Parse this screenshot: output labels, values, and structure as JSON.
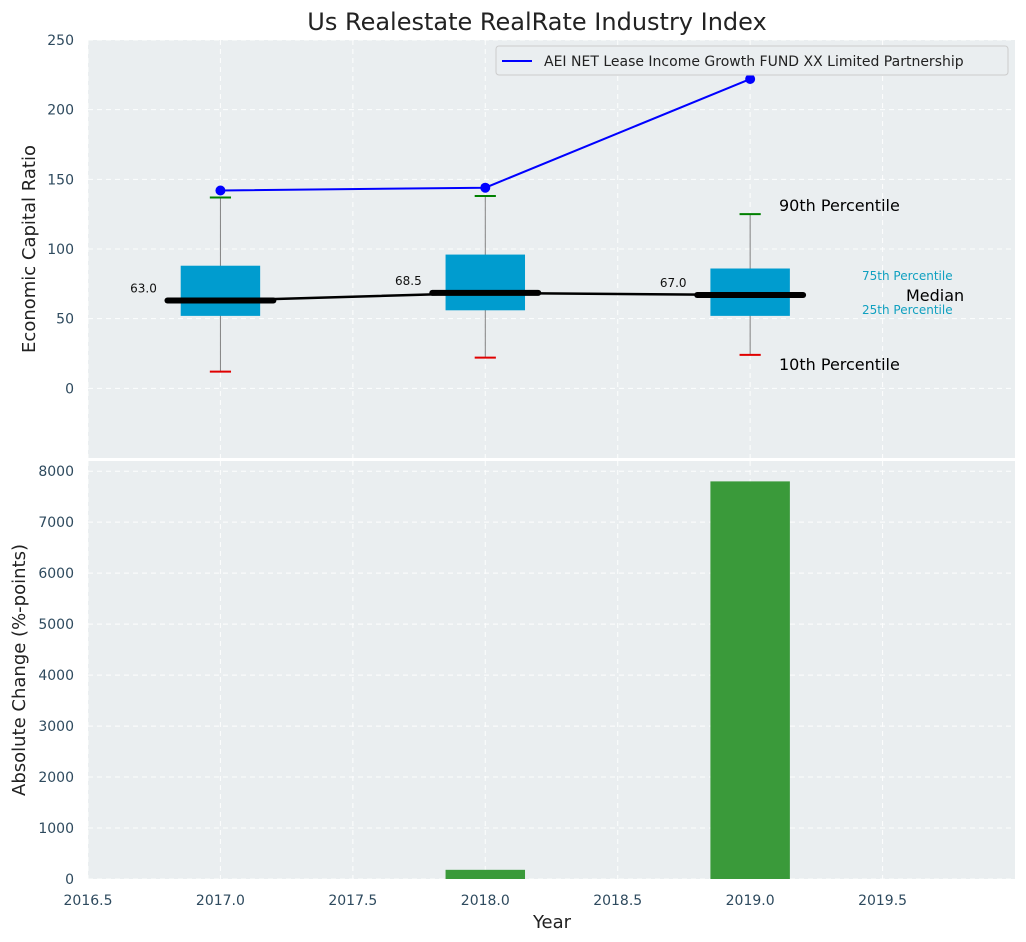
{
  "chart_data": [
    {
      "type": "boxplot_line",
      "title": "Us Realestate RealRate Industry Index",
      "xlabel": "",
      "ylabel": "Economic Capital Ratio",
      "xlim": [
        2016.5,
        2020.0
      ],
      "ylim": [
        -50,
        250
      ],
      "yticks": [
        0,
        50,
        100,
        150,
        200,
        250
      ],
      "grid": true,
      "boxes": [
        {
          "x": 2017.0,
          "p10": 12,
          "p25": 52,
          "median": 63.0,
          "p75": 88,
          "p90": 137,
          "median_label": "63.0"
        },
        {
          "x": 2018.0,
          "p10": 22,
          "p25": 56,
          "median": 68.5,
          "p75": 96,
          "p90": 138,
          "median_label": "68.5"
        },
        {
          "x": 2019.0,
          "p10": 24,
          "p25": 52,
          "median": 67.0,
          "p75": 86,
          "p90": 125,
          "median_label": "67.0"
        }
      ],
      "series": [
        {
          "name": "AEI NET Lease Income Growth FUND XX Limited Partnership",
          "color": "#0000ff",
          "x": [
            2017.0,
            2018.0,
            2019.0
          ],
          "values": [
            142,
            144,
            222
          ]
        }
      ],
      "legend_position": "top-right",
      "annotations": {
        "p90": "90th Percentile",
        "p75": "75th Percentile",
        "median": "Median",
        "p25": "25th Percentile",
        "p10": "10th Percentile"
      }
    },
    {
      "type": "bar",
      "title": "",
      "xlabel": "Year",
      "ylabel": "Absolute Change (%-points)",
      "xlim": [
        2016.5,
        2020.0
      ],
      "ylim": [
        0,
        8200
      ],
      "yticks": [
        0,
        1000,
        2000,
        3000,
        4000,
        5000,
        6000,
        7000,
        8000
      ],
      "xticks": [
        2016.5,
        2017.0,
        2017.5,
        2018.0,
        2018.5,
        2019.0,
        2019.5
      ],
      "xtick_labels": [
        "2016.5",
        "2017.0",
        "2017.5",
        "2018.0",
        "2018.5",
        "2019.0",
        "2019.5"
      ],
      "grid": true,
      "x": [
        2018.0,
        2019.0
      ],
      "values": [
        180,
        7800
      ]
    }
  ],
  "colors": {
    "panel_bg": "#eaeef0",
    "box": "#009ccf",
    "whisker": "#808080",
    "p90_cap": "#008000",
    "p10_cap": "#e00000",
    "median": "#000000",
    "series_line": "#0000ff",
    "bar": "#3a9a3a",
    "annotation_cyan": "#10a0c0"
  }
}
